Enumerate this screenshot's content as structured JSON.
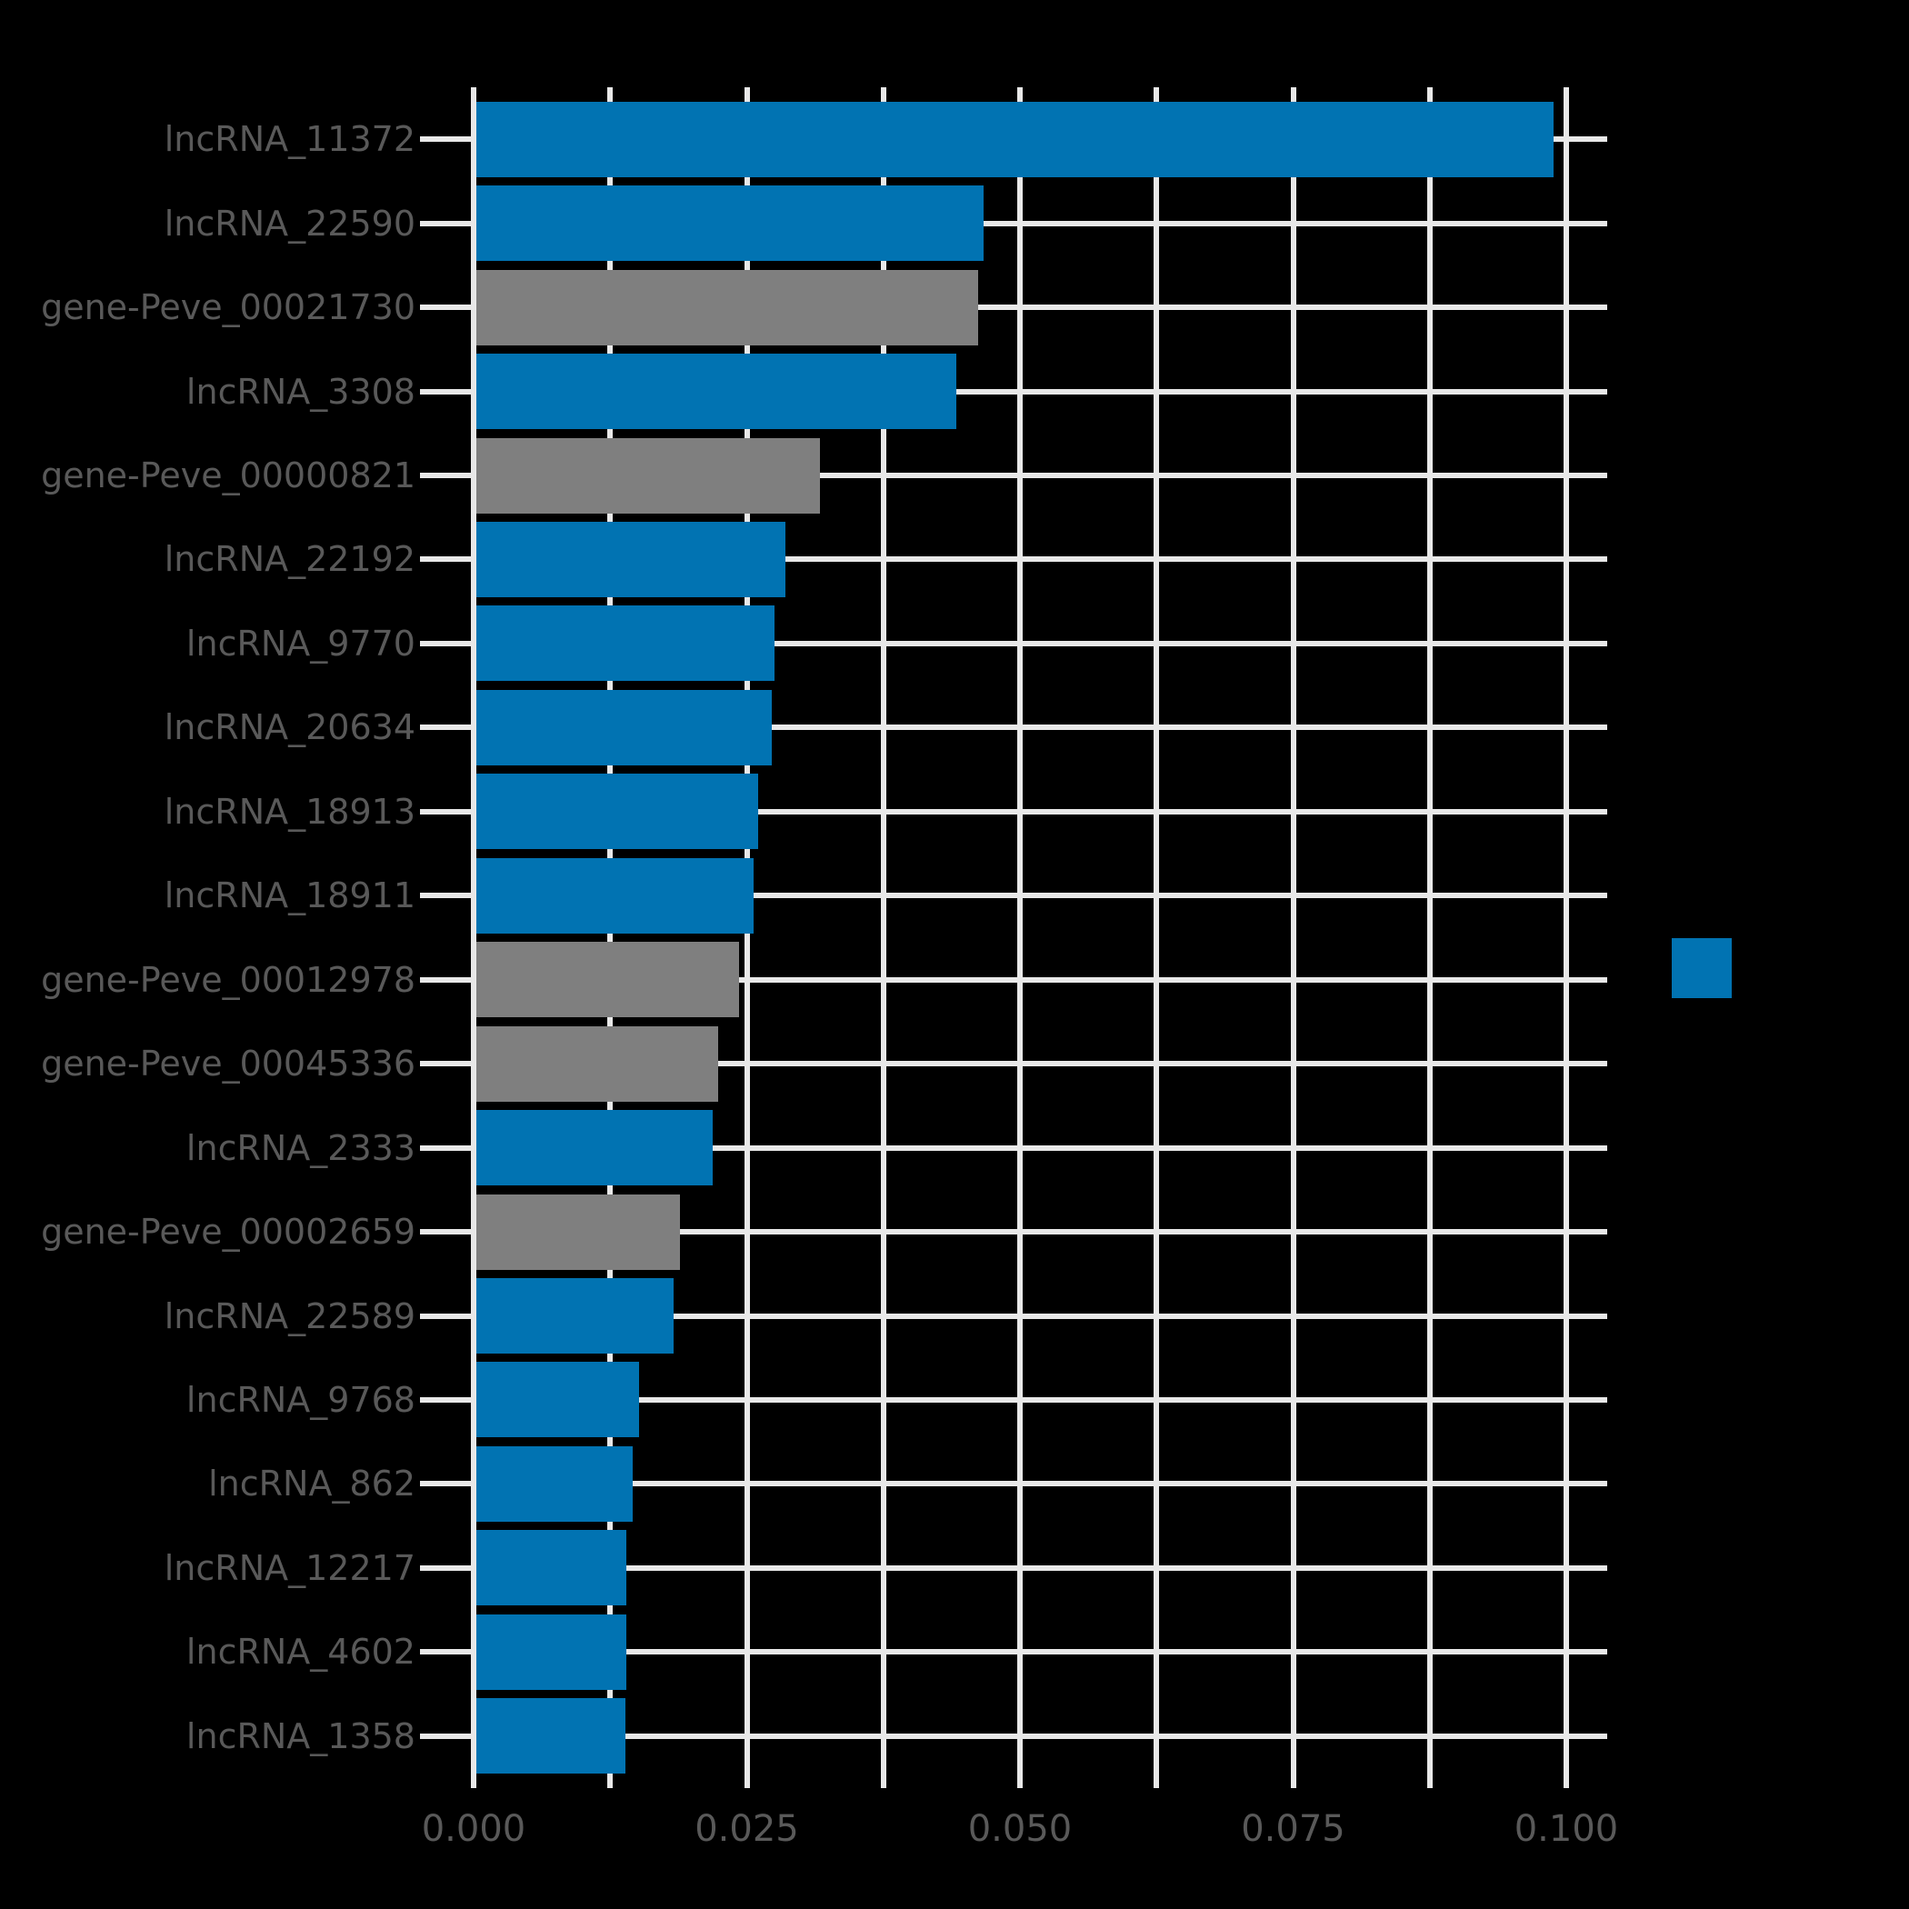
{
  "figure": {
    "background_color": "#000000",
    "text_color": "#595959",
    "grid_color": "#E8E8E8"
  },
  "legend": {
    "position": "center-right",
    "swatch_color": "#0173B2",
    "label": ""
  },
  "chart_data": {
    "type": "bar",
    "orientation": "horizontal",
    "title": "",
    "xlabel": "",
    "ylabel": "",
    "grid": true,
    "xlim": [
      0,
      0.1038
    ],
    "x_major_ticks": [
      0.0,
      0.025,
      0.05,
      0.075,
      0.1
    ],
    "x_major_tick_labels": [
      "0.000",
      "0.025",
      "0.050",
      "0.075",
      "0.100"
    ],
    "x_minor_gridline_step": 0.0125,
    "categories": [
      "lncRNA_11372",
      "lncRNA_22590",
      "gene-Peve_00021730",
      "lncRNA_3308",
      "gene-Peve_00000821",
      "lncRNA_22192",
      "lncRNA_9770",
      "lncRNA_20634",
      "lncRNA_18913",
      "lncRNA_18911",
      "gene-Peve_00012978",
      "gene-Peve_00045336",
      "lncRNA_2333",
      "gene-Peve_00002659",
      "lncRNA_22589",
      "lncRNA_9768",
      "lncRNA_862",
      "lncRNA_12217",
      "lncRNA_4602",
      "lncRNA_1358"
    ],
    "values": [
      0.0988,
      0.0467,
      0.0462,
      0.0442,
      0.0317,
      0.0285,
      0.0275,
      0.0273,
      0.026,
      0.0256,
      0.0243,
      0.0224,
      0.0219,
      0.0189,
      0.0183,
      0.0151,
      0.0146,
      0.014,
      0.014,
      0.0139
    ],
    "bar_types": [
      "lncRNA",
      "lncRNA",
      "gene",
      "lncRNA",
      "gene",
      "lncRNA",
      "lncRNA",
      "lncRNA",
      "lncRNA",
      "lncRNA",
      "gene",
      "gene",
      "lncRNA",
      "gene",
      "lncRNA",
      "lncRNA",
      "lncRNA",
      "lncRNA",
      "lncRNA",
      "lncRNA"
    ],
    "type_colors": {
      "lncRNA": "#0173B2",
      "gene": "#7F7F7F"
    },
    "legend_position": "center-right"
  }
}
